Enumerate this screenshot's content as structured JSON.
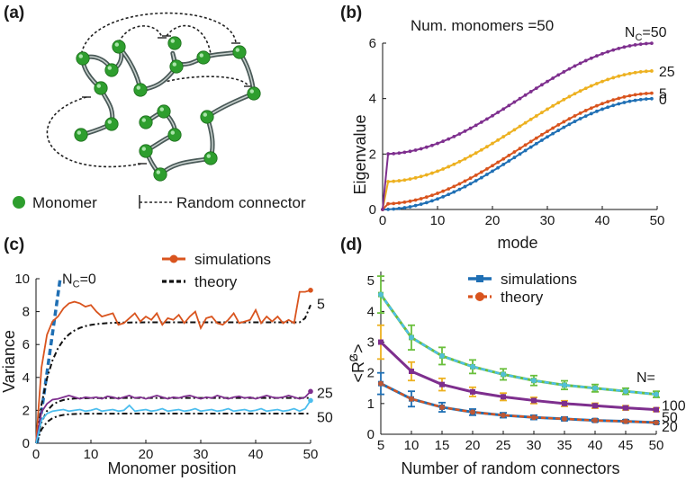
{
  "panel_a": {
    "label": "(a)",
    "legend": {
      "monomer": "Monomer",
      "connector": "Random connector"
    },
    "colors": {
      "bead": "#2e9e2e",
      "chain": "#4a5a58"
    }
  },
  "chart_data": [
    {
      "id": "b",
      "type": "line",
      "label": "(b)",
      "title": "Num. monomers =50",
      "xlabel": "mode",
      "ylabel": "Eigenvalue",
      "xlim": [
        0,
        50
      ],
      "ylim": [
        0,
        6
      ],
      "xticks": [
        "0",
        "10",
        "20",
        "30",
        "40",
        "50"
      ],
      "yticks": [
        "0",
        "2",
        "4",
        "6"
      ],
      "series_label_prefix": "N",
      "series_label_sub": "C",
      "series": [
        {
          "name": "0",
          "label": "0",
          "color": "#1f6fb4",
          "offset": 0
        },
        {
          "name": "5",
          "label": "5",
          "color": "#d9541e",
          "offset": 0.2
        },
        {
          "name": "25",
          "label": "25",
          "color": "#edb120",
          "offset": 1.0
        },
        {
          "name": "50",
          "label": "=50",
          "color": "#7e2f8e",
          "offset": 2.0
        }
      ]
    },
    {
      "id": "c",
      "type": "line",
      "label": "(c)",
      "xlabel": "Monomer position",
      "ylabel": "Variance",
      "xlim": [
        0,
        50
      ],
      "ylim": [
        0,
        10
      ],
      "xticks": [
        "0",
        "10",
        "20",
        "30",
        "40",
        "50"
      ],
      "yticks": [
        "0",
        "2",
        "4",
        "6",
        "8",
        "10"
      ],
      "legend": {
        "simulations": "simulations",
        "theory": "theory"
      },
      "nc0": {
        "label_prefix": "N",
        "label_sub": "C",
        "label_suffix": "=0",
        "color": "#1f6fb4"
      },
      "series": [
        {
          "name": "5",
          "label": "5",
          "color": "#d9541e",
          "plateau": 7.35,
          "sim": [
            0,
            4.6,
            6.6,
            7.4,
            7.7,
            8.2,
            8.5,
            8.6,
            8.5,
            8.3,
            8.4,
            8.0,
            7.7,
            7.8,
            7.9,
            7.2,
            7.3,
            7.6,
            7.9,
            7.4,
            7.7,
            7.5,
            7.9,
            7.2,
            7.6,
            7.5,
            7.8,
            7.3,
            7.7,
            8.0,
            7.0,
            7.6,
            7.7,
            7.3,
            7.2,
            7.5,
            7.9,
            7.3,
            7.4,
            7.5,
            8.1,
            7.3,
            7.7,
            7.4,
            7.7,
            7.3,
            7.5,
            7.3,
            9.2,
            9.2,
            9.3
          ]
        },
        {
          "name": "25",
          "label": "25",
          "color": "#7e2f8e",
          "plateau": 2.75,
          "sim": [
            0,
            1.9,
            2.4,
            2.65,
            2.7,
            2.8,
            2.9,
            2.8,
            2.7,
            2.8,
            2.75,
            2.8,
            2.7,
            2.85,
            2.8,
            2.7,
            2.8,
            2.9,
            2.75,
            2.8,
            2.7,
            2.8,
            2.9,
            2.8,
            2.7,
            2.8,
            2.75,
            2.85,
            2.9,
            2.8,
            2.7,
            2.8,
            2.75,
            2.9,
            2.8,
            2.7,
            2.8,
            2.85,
            2.75,
            2.8,
            2.7,
            2.8,
            2.9,
            2.8,
            2.75,
            2.8,
            2.9,
            2.8,
            2.7,
            2.8,
            3.15
          ]
        },
        {
          "name": "50",
          "label": "50",
          "color": "#4dbeee",
          "plateau": 1.8,
          "sim": [
            0,
            1.4,
            1.8,
            1.95,
            2.0,
            2.05,
            1.95,
            2.0,
            2.05,
            1.95,
            2.0,
            2.1,
            1.95,
            2.0,
            2.05,
            1.95,
            2.0,
            2.3,
            1.95,
            2.0,
            2.05,
            1.95,
            2.0,
            2.1,
            1.95,
            2.0,
            2.05,
            1.95,
            2.0,
            2.1,
            1.95,
            2.0,
            2.05,
            1.95,
            2.0,
            2.1,
            1.95,
            2.0,
            2.05,
            1.95,
            2.0,
            2.1,
            1.95,
            2.0,
            2.05,
            1.95,
            2.0,
            2.1,
            1.95,
            2.1,
            2.6
          ]
        }
      ]
    },
    {
      "id": "d",
      "type": "line",
      "label": "(d)",
      "xlabel": "Number of random connectors",
      "ylabel": "<R",
      "ylabel_sup": "2",
      "ylabel_sub": "G",
      "ylabel_end": ">",
      "xlim": [
        5,
        50
      ],
      "ylim": [
        0,
        5.3
      ],
      "x": [
        5,
        10,
        15,
        20,
        25,
        30,
        35,
        40,
        45,
        50
      ],
      "xticks": [
        "5",
        "10",
        "15",
        "20",
        "25",
        "30",
        "35",
        "40",
        "45",
        "50"
      ],
      "yticks": [
        "0",
        "1",
        "2",
        "3",
        "4",
        "5"
      ],
      "legend": {
        "simulations": "simulations",
        "theory": "theory"
      },
      "n_label": "N=",
      "series": [
        {
          "name": "100",
          "label": "100",
          "sim_color": "#6abf3c",
          "theory_color": "#4dbeee",
          "err_color": "#6abf3c",
          "values": [
            4.55,
            3.15,
            2.55,
            2.2,
            1.95,
            1.75,
            1.6,
            1.5,
            1.4,
            1.3
          ],
          "errors": [
            0.6,
            0.4,
            0.28,
            0.22,
            0.18,
            0.16,
            0.14,
            0.12,
            0.1,
            0.1
          ]
        },
        {
          "name": "50",
          "label": "50",
          "sim_color": "#7e2f8e",
          "theory_color": "#7e2f8e",
          "err_color": "#edb120",
          "values": [
            3.0,
            2.05,
            1.62,
            1.38,
            1.22,
            1.1,
            1.0,
            0.93,
            0.86,
            0.8
          ],
          "errors": [
            0.55,
            0.3,
            0.2,
            0.15,
            0.12,
            0.1,
            0.09,
            0.08,
            0.07,
            0.06
          ]
        },
        {
          "name": "20",
          "label": "20",
          "sim_color": "#1f6fb4",
          "theory_color": "#d9541e",
          "err_color": "#1f6fb4",
          "values": [
            1.65,
            1.15,
            0.88,
            0.72,
            0.62,
            0.55,
            0.5,
            0.45,
            0.42,
            0.38
          ],
          "errors": [
            0.35,
            0.25,
            0.15,
            0.1,
            0.08,
            0.07,
            0.06,
            0.05,
            0.05,
            0.04
          ]
        }
      ]
    }
  ]
}
